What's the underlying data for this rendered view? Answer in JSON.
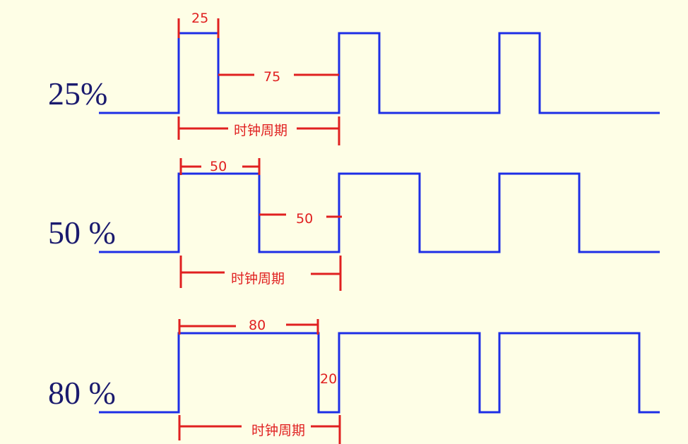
{
  "rows": [
    {
      "label": "25%",
      "high_width": "25",
      "low_width": "75",
      "period_label": "时钟周期"
    },
    {
      "label": "50 %",
      "high_width": "50",
      "low_width": "50",
      "period_label": "时钟周期"
    },
    {
      "label": "80 %",
      "high_width": "80",
      "low_width": "20",
      "period_label": "时钟周期"
    }
  ],
  "colors": {
    "background": "#fefee6",
    "waveform": "#1d2ee6",
    "dimension": "#e02020",
    "label": "#1a1a6e"
  }
}
